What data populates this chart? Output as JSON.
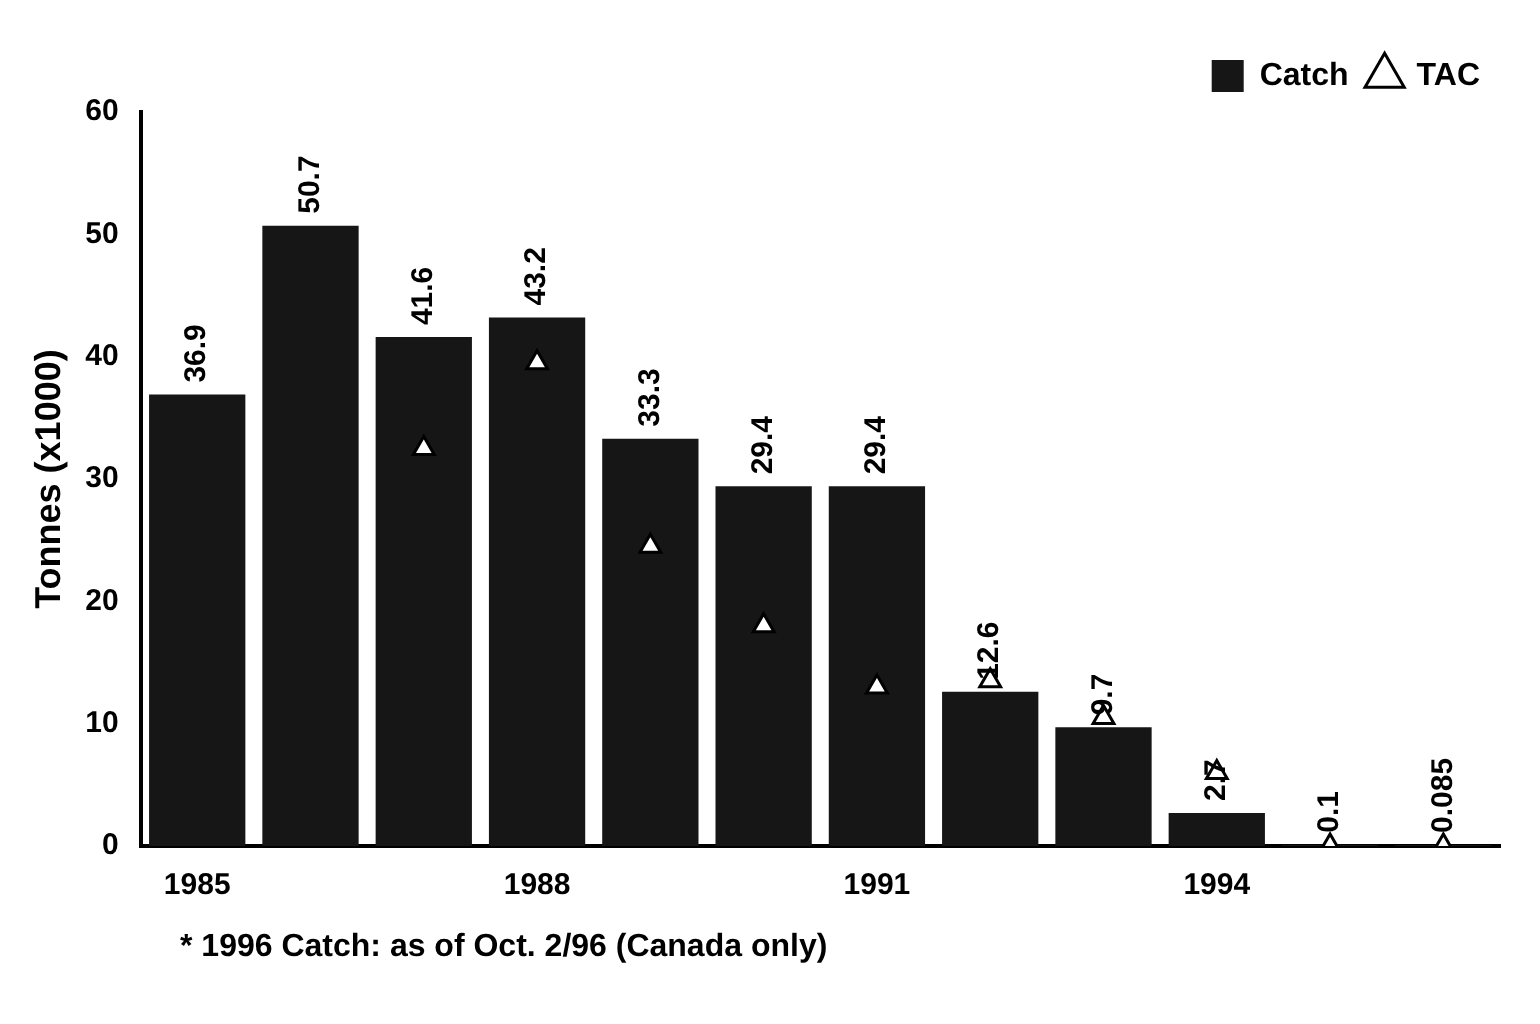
{
  "chart_data": {
    "type": "bar",
    "ylabel": "Tonnes (x1000)",
    "categories": [
      "1985",
      null,
      null,
      "1988",
      null,
      null,
      "1991",
      null,
      null,
      "1994",
      null,
      null
    ],
    "series": [
      {
        "name": "Catch",
        "color": "#161616",
        "values": [
          36.9,
          50.7,
          41.6,
          43.2,
          33.3,
          29.4,
          29.4,
          12.6,
          9.7,
          2.7,
          0.1,
          0.085
        ],
        "value_labels": [
          "36.9",
          "50.7",
          "41.6",
          "43.2",
          "33.3",
          "29.4",
          "29.4",
          "12.6",
          "9.7",
          "2.7",
          "0.1",
          "0.085"
        ]
      },
      {
        "name": "TAC",
        "type": "scatter",
        "color": "#ffffff",
        "marker": "triangle",
        "values": [
          null,
          null,
          32.5,
          39.5,
          24.5,
          18,
          13,
          13.5,
          10.5,
          6,
          0,
          0
        ]
      }
    ],
    "ylim": [
      0,
      60
    ],
    "yticks": [
      0,
      10,
      20,
      30,
      40,
      50,
      60
    ],
    "grid": false,
    "legend": "top right",
    "annotations": [
      "* 1996 Catch: as of Oct. 2/96 (Canada only)"
    ]
  }
}
